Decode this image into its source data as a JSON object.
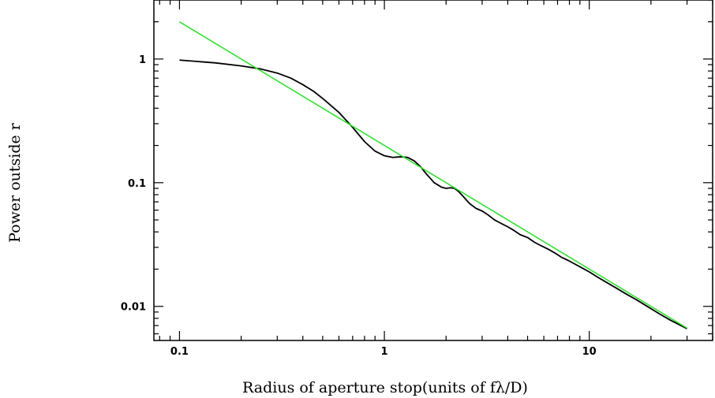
{
  "chart_data": {
    "type": "line",
    "title": "",
    "xlabel": "Radius of aperture stop(units of fλ/D)",
    "ylabel": "Power outside r",
    "xscale": "log",
    "yscale": "log",
    "xlim": [
      0.075,
      40
    ],
    "ylim": [
      0.0053,
      3.0
    ],
    "grid": false,
    "x_ticks": [
      {
        "value": 0.1,
        "label": "0.1"
      },
      {
        "value": 1,
        "label": "1"
      },
      {
        "value": 10,
        "label": "10"
      }
    ],
    "y_ticks": [
      {
        "value": 0.01,
        "label": "0.01"
      },
      {
        "value": 0.1,
        "label": "0.1"
      },
      {
        "value": 1,
        "label": "1"
      }
    ],
    "series": [
      {
        "color": "#000000",
        "x": [
          0.1,
          0.15,
          0.2,
          0.25,
          0.3,
          0.35,
          0.4,
          0.45,
          0.5,
          0.6,
          0.7,
          0.8,
          0.9,
          1.0,
          1.1,
          1.2,
          1.3,
          1.4,
          1.5,
          1.6,
          1.75,
          1.9,
          2.0,
          2.1,
          2.2,
          2.3,
          2.45,
          2.6,
          2.8,
          3.0,
          3.2,
          3.45,
          3.7,
          4.0,
          4.3,
          4.6,
          5.0,
          5.4,
          5.8,
          6.3,
          6.8,
          7.3,
          7.9,
          8.5,
          9.2,
          10,
          11,
          12,
          13.5,
          15,
          17,
          19,
          22,
          25,
          30
        ],
        "y": [
          0.98,
          0.93,
          0.88,
          0.83,
          0.77,
          0.7,
          0.62,
          0.55,
          0.48,
          0.37,
          0.28,
          0.215,
          0.18,
          0.165,
          0.16,
          0.162,
          0.16,
          0.15,
          0.135,
          0.118,
          0.1,
          0.092,
          0.09,
          0.091,
          0.09,
          0.085,
          0.076,
          0.068,
          0.062,
          0.059,
          0.055,
          0.05,
          0.047,
          0.044,
          0.041,
          0.038,
          0.036,
          0.033,
          0.031,
          0.029,
          0.027,
          0.025,
          0.0235,
          0.022,
          0.0205,
          0.019,
          0.0172,
          0.0158,
          0.0141,
          0.0127,
          0.0113,
          0.0101,
          0.0087,
          0.0077,
          0.0066
        ]
      },
      {
        "color": "#33e033",
        "x": [
          0.1,
          30
        ],
        "y": [
          2.0,
          0.00667
        ]
      }
    ]
  }
}
